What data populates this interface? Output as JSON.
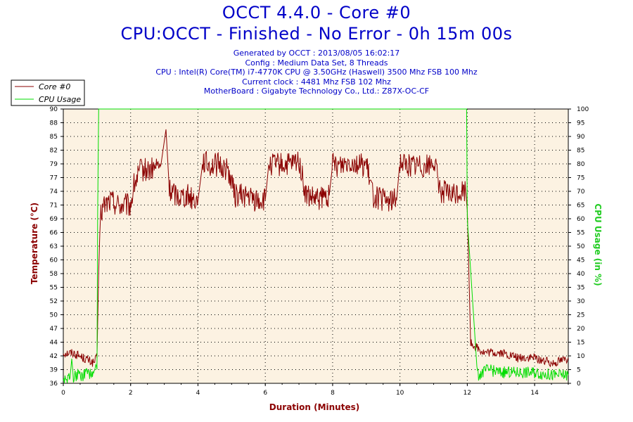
{
  "title": "OCCT 4.4.0 - Core #0",
  "subtitle": "CPU:OCCT - Finished - No Error - 0h 15m 00s",
  "info_lines": [
    "Generated by OCCT : 2013/08/05 16:02:17",
    "Config : Medium Data Set, 8 Threads",
    "CPU : Intel(R) Core(TM) i7-4770K CPU @ 3.50GHz (Haswell) 3500 Mhz FSB 100 Mhz",
    "Current clock : 4481 Mhz FSB 102 Mhz",
    "MotherBoard : Gigabyte Technology Co., Ltd.: Z87X-OC-CF"
  ],
  "colors": {
    "temperature": "#8b0000",
    "cpu_usage": "#00dd00",
    "plot_bg": "#fcf2e2",
    "title": "#0000c8"
  },
  "chart_data": {
    "type": "line",
    "title": "OCCT 4.4.0 - Core #0",
    "xlabel": "Duration (Minutes)",
    "ylabel_left": "Temperature (°C)",
    "ylabel_right": "CPU Usage (in %)",
    "xlim": [
      0,
      15
    ],
    "ylim_left": [
      36,
      90
    ],
    "ylim_right": [
      0,
      100
    ],
    "x_ticks": [
      "0",
      "2",
      "4",
      "6",
      "8",
      "10",
      "12",
      "14"
    ],
    "y_left_ticks": [
      "36",
      "39",
      "42",
      "44",
      "47",
      "50",
      "52",
      "55",
      "58",
      "60",
      "63",
      "66",
      "69",
      "71",
      "74",
      "77",
      "79",
      "82",
      "85",
      "88",
      "90"
    ],
    "y_right_ticks": [
      "0",
      "5",
      "10",
      "15",
      "20",
      "25",
      "30",
      "35",
      "40",
      "45",
      "50",
      "55",
      "60",
      "65",
      "70",
      "75",
      "80",
      "85",
      "90",
      "95",
      "100"
    ],
    "grid": true,
    "legend_position": "top-left",
    "series": [
      {
        "name": "Core #0",
        "axis": "left",
        "x": [
          0,
          0.3,
          0.6,
          0.9,
          1.0,
          1.05,
          1.1,
          1.2,
          1.4,
          1.7,
          2.0,
          2.1,
          2.3,
          2.6,
          2.9,
          3.05,
          3.15,
          3.4,
          3.7,
          4.0,
          4.15,
          4.3,
          4.6,
          4.9,
          5.1,
          5.4,
          5.7,
          6.0,
          6.1,
          6.4,
          6.8,
          7.0,
          7.2,
          7.5,
          7.9,
          8.0,
          8.2,
          8.5,
          8.8,
          9.0,
          9.2,
          9.5,
          9.9,
          10.0,
          10.2,
          10.5,
          10.9,
          11.0,
          11.2,
          11.5,
          11.95,
          12.0,
          12.1,
          12.5,
          13.0,
          13.5,
          14.0,
          14.5,
          15.0
        ],
        "y": [
          42,
          42,
          41,
          40,
          41,
          58,
          69,
          71,
          72,
          71,
          71,
          75,
          78,
          78,
          79,
          86,
          74,
          73,
          73,
          72,
          80,
          79,
          79,
          78,
          73,
          73,
          72,
          72,
          79,
          79,
          79,
          80,
          73,
          72,
          73,
          79,
          79,
          80,
          79,
          79,
          73,
          72,
          72,
          80,
          79,
          79,
          79,
          80,
          74,
          73,
          74,
          70,
          44,
          42,
          42,
          41,
          41,
          40,
          41
        ]
      },
      {
        "name": "CPU Usage",
        "axis": "right",
        "x": [
          0,
          0.2,
          0.25,
          0.3,
          0.4,
          0.6,
          0.9,
          1.0,
          1.02,
          1.05,
          11.95,
          11.98,
          12.0,
          12.3,
          12.6,
          13.0,
          13.5,
          14.0,
          14.5,
          15.0
        ],
        "y": [
          1,
          2,
          9,
          2,
          3,
          3,
          4,
          5,
          60,
          100,
          100,
          100,
          60,
          3,
          5,
          4,
          4,
          4,
          3,
          3
        ]
      }
    ]
  }
}
